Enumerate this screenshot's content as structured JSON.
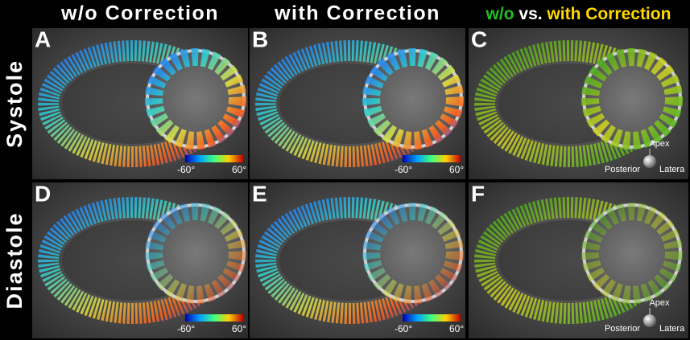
{
  "header": {
    "columns": [
      {
        "title": "w/o Correction"
      },
      {
        "title": "with Correction"
      },
      {
        "parts": [
          "w/o",
          "vs.",
          "with Correction"
        ]
      }
    ]
  },
  "rows": [
    {
      "label": "Systole",
      "panels": [
        {
          "letter": "A",
          "colorbar": [
            "-60°",
            "60°"
          ]
        },
        {
          "letter": "B",
          "colorbar": [
            "-60°",
            "60°"
          ]
        },
        {
          "letter": "C",
          "orientation": {
            "top": "Apex",
            "left": "Posterior",
            "right": "Latera"
          }
        }
      ]
    },
    {
      "label": "Diastole",
      "panels": [
        {
          "letter": "D",
          "colorbar": [
            "-60°",
            "60°"
          ]
        },
        {
          "letter": "E",
          "colorbar": [
            "-60°",
            "60°"
          ]
        },
        {
          "letter": "F",
          "orientation": {
            "top": "Apex",
            "left": "Posterior",
            "right": "Latera"
          }
        }
      ]
    }
  ]
}
